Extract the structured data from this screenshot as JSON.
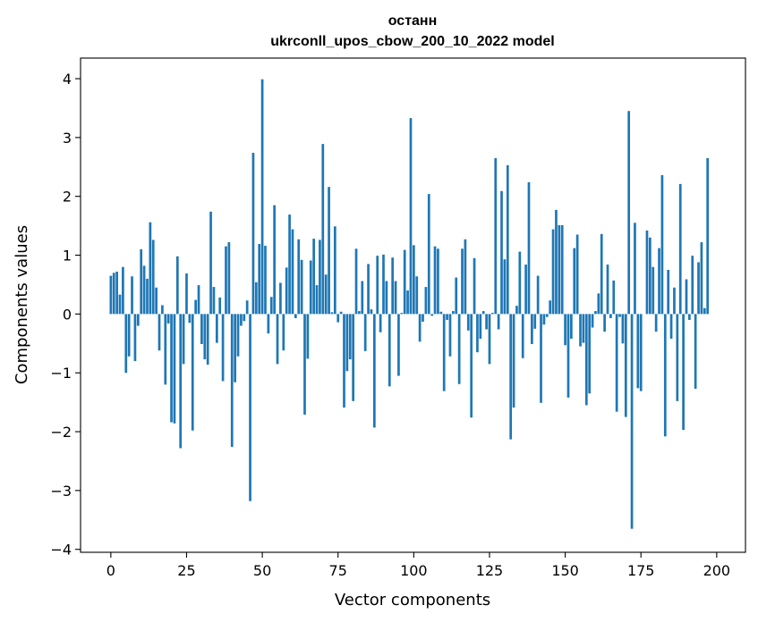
{
  "chart_data": {
    "type": "bar",
    "title_line1": "останн",
    "title_line2": "ukrconll_upos_cbow_200_10_2022 model",
    "xlabel": "Vector components",
    "ylabel": "Components values",
    "xlim": [
      -10,
      209.5
    ],
    "ylim": [
      -4.05,
      4.35
    ],
    "xticks": [
      0,
      25,
      50,
      75,
      100,
      125,
      150,
      175,
      200
    ],
    "yticks": [
      -4,
      -3,
      -2,
      -1,
      0,
      1,
      2,
      3,
      4
    ],
    "ytick_labels": [
      "−4",
      "−3",
      "−2",
      "−1",
      "0",
      "1",
      "2",
      "3",
      "4"
    ],
    "bar_color": "#1f77b4",
    "values": [
      0.65,
      0.7,
      0.72,
      0.33,
      0.8,
      -1.0,
      -0.72,
      0.64,
      -0.8,
      -0.2,
      1.1,
      0.82,
      0.6,
      1.56,
      1.26,
      0.45,
      -0.62,
      0.15,
      -1.2,
      -0.16,
      -1.84,
      -1.86,
      0.98,
      -2.28,
      -0.85,
      0.69,
      -0.15,
      -1.98,
      0.24,
      0.49,
      -0.51,
      -0.77,
      -0.86,
      1.74,
      0.46,
      -0.49,
      0.28,
      -1.14,
      1.15,
      1.22,
      -2.26,
      -1.16,
      -0.72,
      -0.2,
      -0.12,
      0.23,
      -3.18,
      2.74,
      0.54,
      1.19,
      3.99,
      1.16,
      -0.33,
      0.29,
      1.85,
      -0.85,
      0.53,
      -0.62,
      0.79,
      1.69,
      1.44,
      -0.07,
      1.27,
      0.92,
      -1.71,
      -0.76,
      0.91,
      1.28,
      0.49,
      1.26,
      2.89,
      0.67,
      2.16,
      0.03,
      1.49,
      -0.14,
      0.04,
      -1.59,
      -0.97,
      -0.77,
      -1.48,
      1.11,
      0.05,
      0.56,
      -0.63,
      0.85,
      0.08,
      -1.93,
      0.99,
      -0.31,
      1.01,
      0.56,
      -1.23,
      0.96,
      0.56,
      -1.05,
      0.02,
      1.09,
      0.4,
      3.33,
      1.17,
      0.64,
      -0.47,
      -0.13,
      0.46,
      2.04,
      -0.03,
      1.15,
      1.11,
      0.04,
      -1.31,
      -0.1,
      -0.72,
      0.05,
      0.62,
      -1.19,
      1.11,
      1.27,
      -0.28,
      -1.76,
      0.95,
      -0.65,
      -0.42,
      0.05,
      -0.26,
      -0.85,
      0.02,
      2.65,
      -0.26,
      2.09,
      0.93,
      2.53,
      -2.13,
      -1.59,
      0.14,
      1.06,
      -0.75,
      0.84,
      2.24,
      -0.51,
      -0.25,
      0.65,
      -1.51,
      -0.18,
      -0.05,
      0.23,
      1.44,
      1.77,
      1.51,
      1.51,
      -0.53,
      -1.42,
      -0.42,
      1.12,
      1.35,
      -0.55,
      -0.49,
      -1.55,
      -1.35,
      -0.23,
      0.05,
      0.35,
      1.36,
      -0.3,
      0.84,
      -0.07,
      0.57,
      -1.66,
      -0.05,
      -0.5,
      -1.75,
      3.45,
      -3.65,
      1.55,
      -1.26,
      -1.31,
      0.0,
      1.42,
      1.3,
      0.8,
      -0.3,
      1.12,
      2.36,
      -2.08,
      0.75,
      -0.42,
      0.45,
      -1.48,
      2.21,
      -1.97,
      0.59,
      -0.1,
      0.99,
      -1.27,
      0.88,
      1.22,
      0.1,
      2.65
    ]
  }
}
